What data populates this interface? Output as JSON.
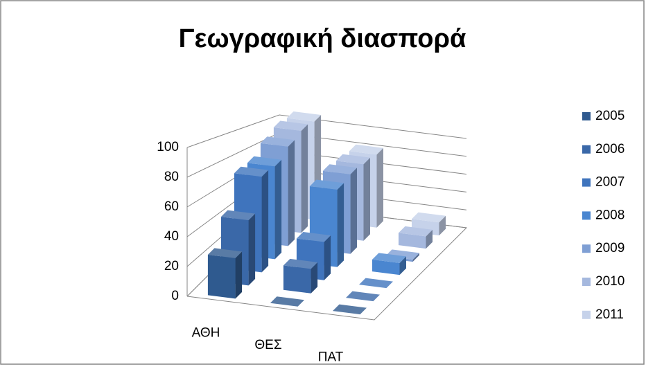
{
  "chart_data": {
    "type": "bar3d",
    "title": "Γεωγραφική διασπορά",
    "categories": [
      "ΑΘΗ",
      "ΘΕΣ",
      "ΠΑΤ"
    ],
    "series": [
      {
        "name": "2005",
        "color": "#2f5a8f",
        "values": [
          28,
          0,
          0
        ]
      },
      {
        "name": "2006",
        "color": "#3a68a8",
        "values": [
          48,
          18,
          0
        ]
      },
      {
        "name": "2007",
        "color": "#3f74bd",
        "values": [
          75,
          30,
          0
        ]
      },
      {
        "name": "2008",
        "color": "#4a86d0",
        "values": [
          78,
          65,
          10
        ]
      },
      {
        "name": "2009",
        "color": "#7f9fd4",
        "values": [
          90,
          72,
          2
        ]
      },
      {
        "name": "2010",
        "color": "#a5b8de",
        "values": [
          100,
          75,
          12
        ]
      },
      {
        "name": "2011",
        "color": "#c6d2ea",
        "values": [
          105,
          78,
          14
        ]
      }
    ],
    "ylim": [
      0,
      100
    ],
    "yticks": [
      0,
      20,
      40,
      60,
      80,
      100
    ],
    "grid": true,
    "legend": "right"
  }
}
